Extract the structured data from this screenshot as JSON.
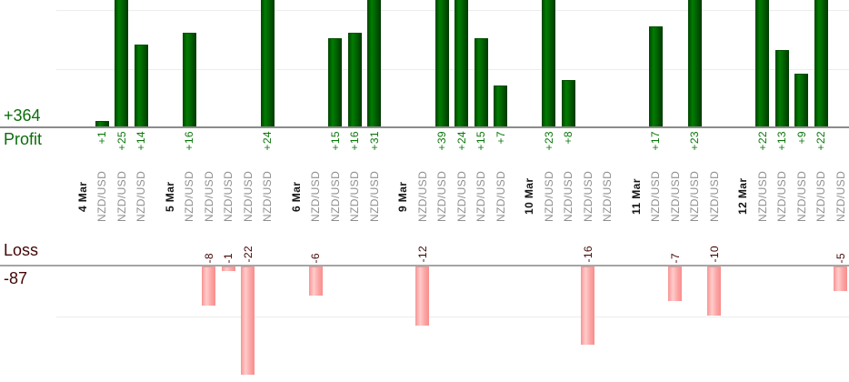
{
  "chart_data": {
    "type": "bar",
    "title": "",
    "instrument": "NZD/USD",
    "profit_axis": {
      "label": "Profit",
      "total": "+364",
      "text_color": "#0a6e0a",
      "gridline_values": [
        10,
        20
      ],
      "baseline": 0
    },
    "loss_axis": {
      "label": "Loss",
      "total": "-87",
      "text_color": "#420707",
      "gridline_values": [
        -10
      ],
      "baseline": 0
    },
    "bar_colors": {
      "profit": "#017d01",
      "loss": "#fba6a6"
    },
    "legend_position": "left",
    "grid": "on",
    "groups": [
      {
        "date": "4 Mar",
        "trades": [
          1,
          25,
          14
        ]
      },
      {
        "date": "5 Mar",
        "trades": [
          16,
          -8,
          -1,
          -22,
          24
        ]
      },
      {
        "date": "6 Mar",
        "trades": [
          -6,
          15,
          16,
          31
        ]
      },
      {
        "date": "9 Mar",
        "trades": [
          -12,
          39,
          24,
          15,
          7
        ]
      },
      {
        "date": "10 Mar",
        "trades": [
          23,
          8,
          -16,
          0
        ]
      },
      {
        "date": "11 Mar",
        "trades": [
          17,
          -7,
          23,
          -10
        ]
      },
      {
        "date": "12 Mar",
        "trades": [
          22,
          13,
          9,
          22,
          -5
        ]
      }
    ]
  }
}
